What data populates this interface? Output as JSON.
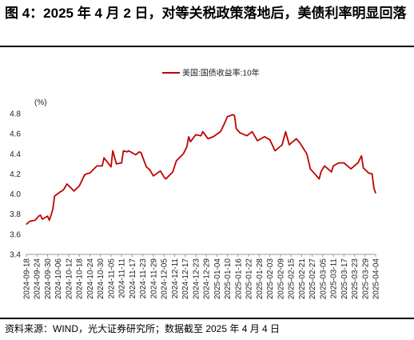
{
  "title": "图 4：2025 年 4 月 2 日，对等关税政策落地后，美债利率明显回落",
  "source": "资料来源：WIND，光大证券研究所；数据截至 2025 年 4 月 4 日",
  "chart_data": {
    "type": "line",
    "unit_label": "(%)",
    "ylim": [
      3.4,
      4.8
    ],
    "yticks": [
      "3.4",
      "3.6",
      "3.8",
      "4.0",
      "4.2",
      "4.4",
      "4.6",
      "4.8"
    ],
    "grid": false,
    "legend_position": "top-center",
    "x_tick_labels": [
      "2024-09-18",
      "2024-09-24",
      "2024-09-30",
      "2024-10-06",
      "2024-10-12",
      "2024-10-18",
      "2024-10-24",
      "2024-10-30",
      "2024-11-05",
      "2024-11-11",
      "2024-11-17",
      "2024-11-23",
      "2024-11-29",
      "2024-12-05",
      "2024-12-11",
      "2024-12-17",
      "2024-12-23",
      "2024-12-29",
      "2025-01-04",
      "2025-01-10",
      "2025-01-16",
      "2025-01-22",
      "2025-01-28",
      "2025-02-03",
      "2025-02-09",
      "2025-02-15",
      "2025-02-21",
      "2025-02-27",
      "2025-03-05",
      "2025-03-11",
      "2025-03-17",
      "2025-03-23",
      "2025-03-29",
      "2025-04-04"
    ],
    "series": [
      {
        "name": "美国:国债收益率:10年",
        "color": "#c00000",
        "x": [
          "2024-09-18",
          "2024-09-20",
          "2024-09-23",
          "2024-09-25",
          "2024-09-26",
          "2024-09-27",
          "2024-09-30",
          "2024-10-01",
          "2024-10-02",
          "2024-10-03",
          "2024-10-04",
          "2024-10-07",
          "2024-10-09",
          "2024-10-11",
          "2024-10-15",
          "2024-10-18",
          "2024-10-21",
          "2024-10-22",
          "2024-10-24",
          "2024-10-28",
          "2024-10-31",
          "2024-11-01",
          "2024-11-05",
          "2024-11-06",
          "2024-11-08",
          "2024-11-11",
          "2024-11-12",
          "2024-11-14",
          "2024-11-15",
          "2024-11-19",
          "2024-11-21",
          "2024-11-22",
          "2024-11-25",
          "2024-11-27",
          "2024-11-29",
          "2024-12-03",
          "2024-12-05",
          "2024-12-06",
          "2024-12-10",
          "2024-12-12",
          "2024-12-16",
          "2024-12-18",
          "2024-12-19",
          "2024-12-20",
          "2024-12-23",
          "2024-12-26",
          "2024-12-27",
          "2024-12-30",
          "2025-01-02",
          "2025-01-06",
          "2025-01-08",
          "2025-01-10",
          "2025-01-13",
          "2025-01-14",
          "2025-01-15",
          "2025-01-17",
          "2025-01-21",
          "2025-01-24",
          "2025-01-27",
          "2025-01-29",
          "2025-01-31",
          "2025-02-03",
          "2025-02-06",
          "2025-02-10",
          "2025-02-12",
          "2025-02-14",
          "2025-02-18",
          "2025-02-20",
          "2025-02-24",
          "2025-02-26",
          "2025-02-28",
          "2025-03-03",
          "2025-03-04",
          "2025-03-06",
          "2025-03-10",
          "2025-03-11",
          "2025-03-14",
          "2025-03-17",
          "2025-03-21",
          "2025-03-25",
          "2025-03-27",
          "2025-03-28",
          "2025-03-31",
          "2025-04-02",
          "2025-04-03",
          "2025-04-04"
        ],
        "values": [
          3.7,
          3.73,
          3.74,
          3.78,
          3.79,
          3.75,
          3.78,
          3.74,
          3.79,
          3.85,
          3.98,
          4.02,
          4.04,
          4.1,
          4.03,
          4.08,
          4.19,
          4.2,
          4.21,
          4.28,
          4.28,
          4.36,
          4.27,
          4.43,
          4.3,
          4.31,
          4.43,
          4.42,
          4.43,
          4.39,
          4.42,
          4.41,
          4.27,
          4.24,
          4.18,
          4.23,
          4.17,
          4.15,
          4.22,
          4.33,
          4.4,
          4.47,
          4.57,
          4.52,
          4.59,
          4.58,
          4.62,
          4.55,
          4.57,
          4.62,
          4.69,
          4.77,
          4.79,
          4.78,
          4.65,
          4.61,
          4.58,
          4.62,
          4.53,
          4.55,
          4.57,
          4.54,
          4.43,
          4.49,
          4.62,
          4.49,
          4.55,
          4.51,
          4.4,
          4.25,
          4.21,
          4.15,
          4.22,
          4.28,
          4.22,
          4.28,
          4.31,
          4.31,
          4.25,
          4.31,
          4.38,
          4.26,
          4.21,
          4.2,
          4.06,
          4.01
        ]
      }
    ]
  }
}
